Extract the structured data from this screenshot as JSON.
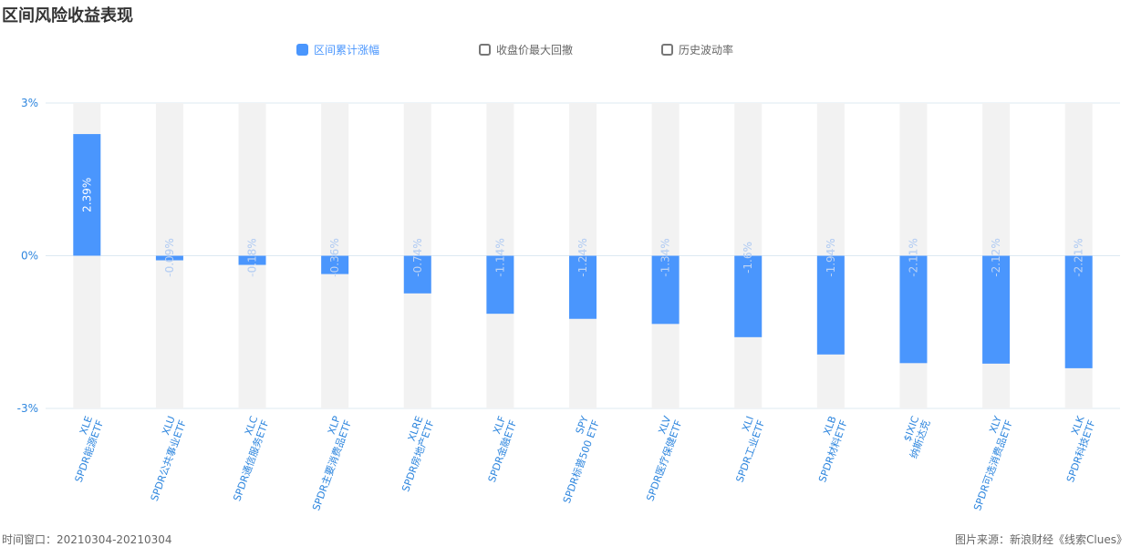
{
  "title": "区间风险收益表现",
  "legend": [
    {
      "label": "区间累计涨幅",
      "active": true
    },
    {
      "label": "收盘价最大回撤",
      "active": false
    },
    {
      "label": "历史波动率",
      "active": false
    }
  ],
  "colors": {
    "bar": "#4a96fd",
    "track": "#f2f2f2",
    "axis_text": "#2e86de",
    "grid": "#dce9f2"
  },
  "chart_data": {
    "type": "bar",
    "ylim": [
      -3,
      3
    ],
    "yticks": [
      "3%",
      "0%",
      "-3%"
    ],
    "categories": [
      {
        "code": "XLE",
        "name": "SPDR能源ETF"
      },
      {
        "code": "XLU",
        "name": "SPDR公共事业ETF"
      },
      {
        "code": "XLC",
        "name": "SPDR通信服务ETF"
      },
      {
        "code": "XLP",
        "name": "SPDR主要消费品ETF"
      },
      {
        "code": "XLRE",
        "name": "SPDR房地产ETF"
      },
      {
        "code": "XLF",
        "name": "SPDR金融ETF"
      },
      {
        "code": "SPY",
        "name": "SPDR标普500 ETF"
      },
      {
        "code": "XLV",
        "name": "SPDR医疗保健ETF"
      },
      {
        "code": "XLI",
        "name": "SPDR工业ETF"
      },
      {
        "code": "XLB",
        "name": "SPDR材料ETF"
      },
      {
        "code": "$IXIC",
        "name": "纳斯达克"
      },
      {
        "code": "XLY",
        "name": "SPDR可选消费品ETF"
      },
      {
        "code": "XLK",
        "name": "SPDR科技ETF"
      }
    ],
    "series": [
      {
        "values": [
          2.39,
          -0.09,
          -0.18,
          -0.36,
          -0.74,
          -1.14,
          -1.24,
          -1.34,
          -1.6,
          -1.94,
          -2.11,
          -2.12,
          -2.21
        ]
      }
    ],
    "value_labels": [
      "2.39%",
      "-0.09%",
      "-0.18%",
      "-0.36%",
      "-0.74%",
      "-1.14%",
      "-1.24%",
      "-1.34%",
      "-1.6%",
      "-1.94%",
      "-2.11%",
      "-2.12%",
      "-2.21%"
    ]
  },
  "footer": {
    "window": "时间窗口：20210304-20210304",
    "source": "图片来源：新浪财经《线索Clues》"
  }
}
